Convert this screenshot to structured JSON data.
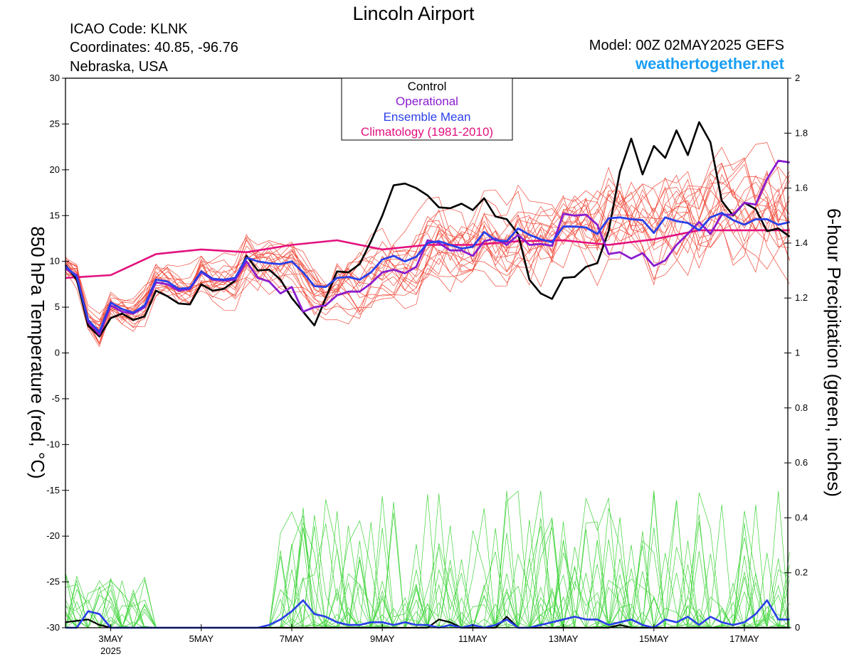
{
  "header": {
    "title": "Lincoln Airport",
    "icao": "ICAO Code: KLNK",
    "coords": "Coordinates: 40.85, -96.76",
    "region": "Nebraska, USA",
    "model": "Model: 00Z 02MAY2025 GEFS",
    "site": "weathertogether.net"
  },
  "colors": {
    "members_temp": "#f04a3a",
    "members_precip": "#3fd43a",
    "control": "#000000",
    "operational": "#8a1ccf",
    "mean": "#2a3fe8",
    "climatology": "#e3107e",
    "site": "#1a9ef5"
  },
  "chart_data": {
    "type": "line",
    "xlabel": "",
    "ylabel": "850 hPa Temperature (red, °C)",
    "y2label": "6-hour Precipitation (green, inches)",
    "xlim": [
      0,
      256
    ],
    "ylim": [
      -30,
      30
    ],
    "y2lim": [
      0,
      2
    ],
    "x_unit": "hours since 00Z 02MAY2025",
    "x_ticks": [
      {
        "hour": 24,
        "label": "3MAY",
        "sublabel": "2025"
      },
      {
        "hour": 72,
        "label": "5MAY"
      },
      {
        "hour": 120,
        "label": "7MAY"
      },
      {
        "hour": 168,
        "label": "9MAY"
      },
      {
        "hour": 216,
        "label": "11MAY"
      },
      {
        "hour": 264,
        "label": "13MAY"
      },
      {
        "hour": 312,
        "label": "15MAY"
      },
      {
        "hour": 360,
        "label": "17MAY"
      }
    ],
    "y_ticks": [
      30,
      25,
      20,
      15,
      10,
      5,
      0,
      -5,
      -10,
      -15,
      -20,
      -25,
      -30
    ],
    "y2_ticks": [
      2,
      1.8,
      1.6,
      1.4,
      1.2,
      1,
      0.8,
      0.6,
      0.4,
      0.2,
      0
    ],
    "legend": {
      "placement": "top-center",
      "items": [
        {
          "key": "control",
          "label": "Control"
        },
        {
          "key": "operational",
          "label": "Operational"
        },
        {
          "key": "mean",
          "label": "Ensemble Mean"
        },
        {
          "key": "climatology",
          "label": "Climatology (1981-2010)"
        }
      ]
    },
    "series": {
      "climatology": {
        "x": [
          0,
          24,
          48,
          72,
          96,
          120,
          144,
          168,
          192,
          216,
          240,
          264,
          288,
          312,
          336,
          384
        ],
        "y": [
          8.2,
          8.5,
          10.8,
          11.3,
          11.0,
          11.8,
          12.3,
          11.3,
          11.8,
          11.8,
          12.2,
          12.3,
          11.8,
          12.4,
          13.4,
          13.4
        ]
      },
      "control": {
        "x": [
          0,
          6,
          12,
          18,
          24,
          30,
          36,
          42,
          48,
          54,
          60,
          66,
          72,
          78,
          84,
          90,
          96,
          102,
          108,
          114,
          120,
          126,
          132,
          138,
          144,
          150,
          156,
          162,
          168,
          174,
          180,
          186,
          192,
          198,
          204,
          210,
          216,
          222,
          228,
          234,
          240,
          246,
          252,
          258,
          264,
          270,
          276,
          282,
          288,
          294,
          300,
          306,
          312,
          318,
          324,
          330,
          336,
          342,
          348,
          354,
          360,
          366,
          372,
          378,
          384
        ],
        "y": [
          9.6,
          8.0,
          3.0,
          1.8,
          3.8,
          4.3,
          3.6,
          4.0,
          6.8,
          6.2,
          5.4,
          5.3,
          7.5,
          6.8,
          7.0,
          7.9,
          10.6,
          9.0,
          9.1,
          8.0,
          6.0,
          4.5,
          3.0,
          6.0,
          8.9,
          8.8,
          9.7,
          12.2,
          15.0,
          18.3,
          18.5,
          18.0,
          17.2,
          15.9,
          15.8,
          16.3,
          15.6,
          16.9,
          14.9,
          14.6,
          13.0,
          8.0,
          6.5,
          5.9,
          8.2,
          8.3,
          9.4,
          9.8,
          13.3,
          19.8,
          23.4,
          19.5,
          22.6,
          21.3,
          24.3,
          21.6,
          25.2,
          23.0,
          16.6,
          15.0,
          16.4,
          15.7,
          13.3,
          13.6,
          12.7
        ]
      },
      "operational": {
        "x": [
          0,
          6,
          12,
          18,
          24,
          30,
          36,
          42,
          48,
          54,
          60,
          66,
          72,
          78,
          84,
          90,
          96,
          102,
          108,
          114,
          120,
          126,
          132,
          138,
          144,
          150,
          156,
          162,
          168,
          174,
          180,
          186,
          192,
          198,
          204,
          210,
          216,
          222,
          228,
          234,
          240,
          246,
          252,
          258,
          264,
          270,
          276,
          282,
          288,
          294,
          300,
          306,
          312,
          318,
          324,
          330,
          336,
          342,
          348,
          354,
          360,
          366,
          372,
          378,
          384
        ],
        "y": [
          9.2,
          8.5,
          3.4,
          2.0,
          5.2,
          4.5,
          4.3,
          5.0,
          7.7,
          7.5,
          6.8,
          7.0,
          8.8,
          8.0,
          7.9,
          8.0,
          10.0,
          8.2,
          7.8,
          6.5,
          7.2,
          4.5,
          5.0,
          5.2,
          6.3,
          6.7,
          6.7,
          7.6,
          8.8,
          9.1,
          8.7,
          9.4,
          12.3,
          12.0,
          11.2,
          11.2,
          10.6,
          12.2,
          12.5,
          11.8,
          12.9,
          11.8,
          11.9,
          11.7,
          15.2,
          15.0,
          15.1,
          14.0,
          10.8,
          11.0,
          10.3,
          10.9,
          9.5,
          10.1,
          11.8,
          13.0,
          14.3,
          13.0,
          15.1,
          15.1,
          16.4,
          16.2,
          19.0,
          21.0,
          20.8
        ]
      },
      "mean": {
        "x": [
          0,
          6,
          12,
          18,
          24,
          30,
          36,
          42,
          48,
          54,
          60,
          66,
          72,
          78,
          84,
          90,
          96,
          102,
          108,
          114,
          120,
          126,
          132,
          138,
          144,
          150,
          156,
          162,
          168,
          174,
          180,
          186,
          192,
          198,
          204,
          210,
          216,
          222,
          228,
          234,
          240,
          246,
          252,
          258,
          264,
          270,
          276,
          282,
          288,
          294,
          300,
          306,
          312,
          318,
          324,
          330,
          336,
          342,
          348,
          354,
          360,
          366,
          372,
          378,
          384
        ],
        "y": [
          9.5,
          8.3,
          3.6,
          2.3,
          5.5,
          4.8,
          4.4,
          5.2,
          8.0,
          7.8,
          7.0,
          7.1,
          8.9,
          8.1,
          8.0,
          8.2,
          10.4,
          10.0,
          9.8,
          9.7,
          10.0,
          8.8,
          7.3,
          7.2,
          8.2,
          8.3,
          8.0,
          8.8,
          10.2,
          10.6,
          10.0,
          10.5,
          12.0,
          12.2,
          11.8,
          11.4,
          11.6,
          13.2,
          12.3,
          12.2,
          13.6,
          12.9,
          12.4,
          12.1,
          13.8,
          13.8,
          13.7,
          13.0,
          14.7,
          14.8,
          14.6,
          14.5,
          13.1,
          14.8,
          14.4,
          14.2,
          13.4,
          14.8,
          15.3,
          14.5,
          14.0,
          14.6,
          14.6,
          14.0,
          14.3
        ]
      }
    },
    "precip_series": {
      "control": {
        "x": [
          0,
          12,
          18,
          24,
          30,
          36,
          48,
          96,
          144,
          168,
          192,
          198,
          204,
          210,
          216,
          222,
          228,
          234,
          240,
          246,
          252,
          264,
          288,
          294,
          300,
          312,
          336,
          384
        ],
        "y": [
          0.02,
          0.03,
          0.01,
          0.0,
          0.0,
          0.0,
          0.0,
          0.0,
          0.0,
          0.0,
          0.0,
          0.03,
          0.02,
          0.0,
          0.0,
          0.0,
          0.0,
          0.04,
          0.0,
          0.0,
          0.0,
          0.0,
          0.0,
          0.01,
          0.0,
          0.0,
          0.0,
          0.0
        ]
      },
      "mean": {
        "x": [
          0,
          6,
          12,
          18,
          24,
          30,
          36,
          42,
          96,
          102,
          108,
          114,
          120,
          126,
          132,
          138,
          144,
          150,
          156,
          162,
          168,
          174,
          180,
          186,
          192,
          198,
          204,
          210,
          216,
          222,
          228,
          234,
          240,
          246,
          252,
          258,
          264,
          270,
          276,
          282,
          288,
          294,
          300,
          306,
          312,
          318,
          324,
          330,
          336,
          342,
          348,
          354,
          360,
          366,
          372,
          378,
          384
        ],
        "y": [
          0.0,
          0.0,
          0.06,
          0.05,
          0.0,
          0.0,
          0.0,
          0.0,
          0.0,
          0.0,
          0.01,
          0.03,
          0.06,
          0.1,
          0.05,
          0.04,
          0.02,
          0.01,
          0.01,
          0.02,
          0.02,
          0.01,
          0.02,
          0.01,
          0.01,
          0.0,
          0.01,
          0.0,
          0.01,
          0.0,
          0.01,
          0.03,
          0.0,
          0.0,
          0.01,
          0.02,
          0.03,
          0.04,
          0.03,
          0.03,
          0.01,
          0.02,
          0.03,
          0.01,
          0.0,
          0.03,
          0.02,
          0.04,
          0.01,
          0.04,
          0.02,
          0.01,
          0.02,
          0.05,
          0.1,
          0.03,
          0.03
        ]
      }
    }
  }
}
